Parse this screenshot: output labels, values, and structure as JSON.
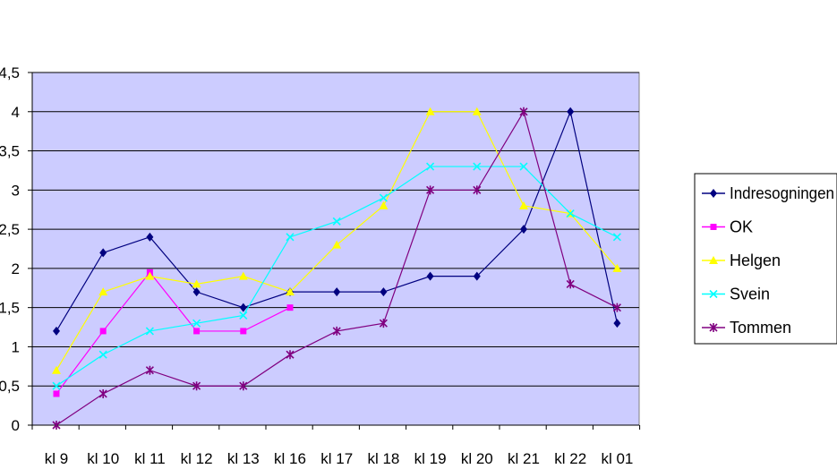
{
  "chart_data": {
    "type": "line",
    "title": "",
    "xlabel": "",
    "ylabel": "",
    "categories": [
      "kl 9",
      "kl 10",
      "kl 11",
      "kl 12",
      "kl 13",
      "kl 16",
      "kl 17",
      "kl 18",
      "kl 19",
      "kl 20",
      "kl 21",
      "kl 22",
      "kl 01"
    ],
    "ylim": [
      0,
      4.5
    ],
    "yticks": [
      "0",
      "0,5",
      "1",
      "1,5",
      "2",
      "2,5",
      "3",
      "3,5",
      "4",
      "4,5"
    ],
    "grid": true,
    "legend_position": "right",
    "plot_background": "#ccccff",
    "series": [
      {
        "name": "Indresogningen",
        "color": "#000080",
        "marker": "diamond",
        "values": [
          1.2,
          2.2,
          2.4,
          1.7,
          1.5,
          1.7,
          1.7,
          1.7,
          1.9,
          1.9,
          2.5,
          4.0,
          1.3
        ]
      },
      {
        "name": "OK",
        "color": "#ff00ff",
        "marker": "square",
        "values": [
          0.4,
          1.2,
          1.95,
          1.2,
          1.2,
          1.5,
          null,
          null,
          null,
          null,
          null,
          null,
          null
        ]
      },
      {
        "name": "Helgen",
        "color": "#ffff00",
        "marker": "triangle",
        "values": [
          0.7,
          1.7,
          1.9,
          1.8,
          1.9,
          1.7,
          2.3,
          2.8,
          4.0,
          4.0,
          2.8,
          2.7,
          2.0
        ]
      },
      {
        "name": "Svein",
        "color": "#00ffff",
        "marker": "x",
        "values": [
          0.5,
          0.9,
          1.2,
          1.3,
          1.4,
          2.4,
          2.6,
          2.9,
          3.3,
          3.3,
          3.3,
          2.7,
          2.4
        ]
      },
      {
        "name": "Tommen",
        "color": "#800080",
        "marker": "star",
        "values": [
          0.0,
          0.4,
          0.7,
          0.5,
          0.5,
          0.9,
          1.2,
          1.3,
          3.0,
          3.0,
          4.0,
          1.8,
          1.5
        ]
      }
    ]
  }
}
